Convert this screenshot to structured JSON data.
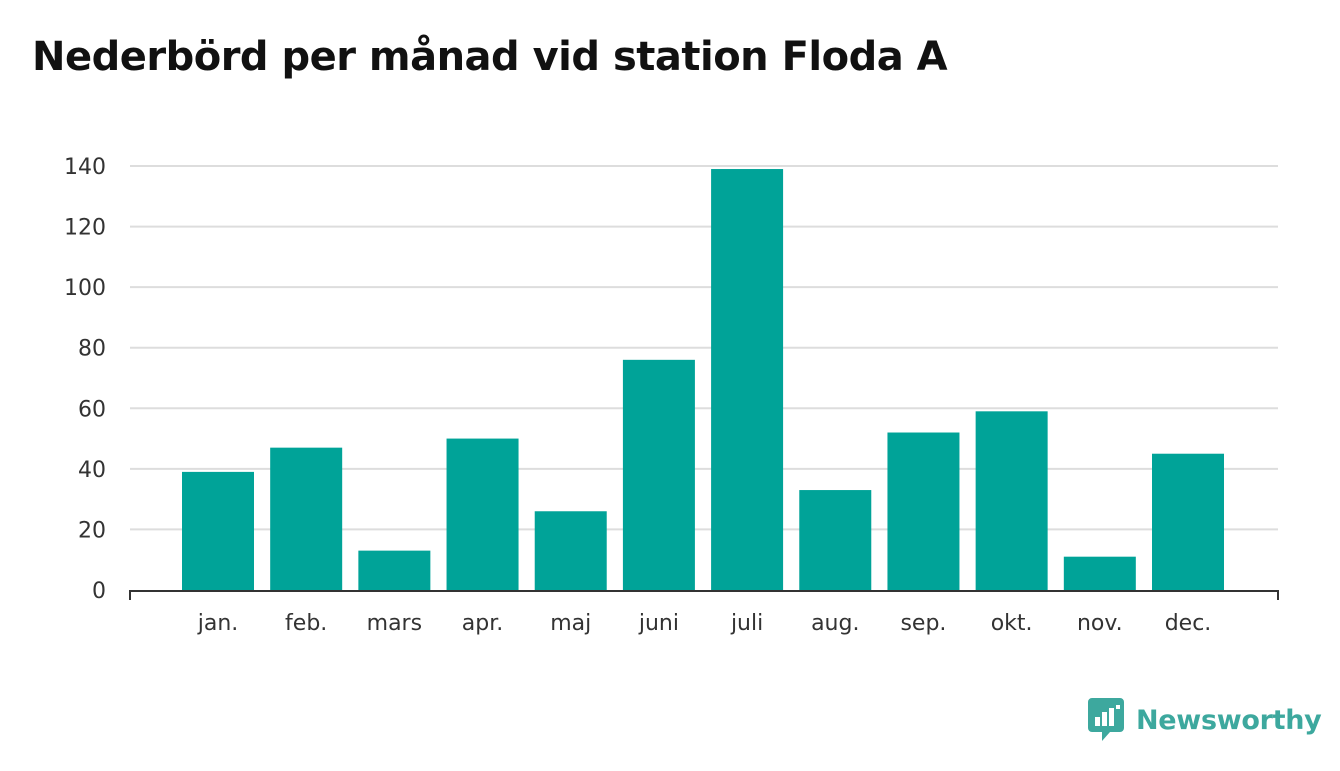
{
  "title": "Nederbörd per månad vid station Floda A",
  "brand": {
    "name": "Newsworthy",
    "icon": "newsworthy-logo-icon",
    "color": "#3da89e"
  },
  "chart_data": {
    "type": "bar",
    "title": "Nederbörd per månad vid station Floda A",
    "xlabel": "",
    "ylabel": "",
    "categories": [
      "jan.",
      "feb.",
      "mars",
      "apr.",
      "maj",
      "juni",
      "juli",
      "aug.",
      "sep.",
      "okt.",
      "nov.",
      "dec."
    ],
    "values": [
      39,
      47,
      13,
      50,
      26,
      76,
      139,
      33,
      52,
      59,
      11,
      45
    ],
    "ylim": [
      0,
      140
    ],
    "yticks": [
      "0",
      "20",
      "40",
      "60",
      "80",
      "100",
      "120",
      "140"
    ],
    "grid": true,
    "bar_color": "#00a398",
    "grid_color": "#dddddd",
    "axis_color": "#333333"
  }
}
